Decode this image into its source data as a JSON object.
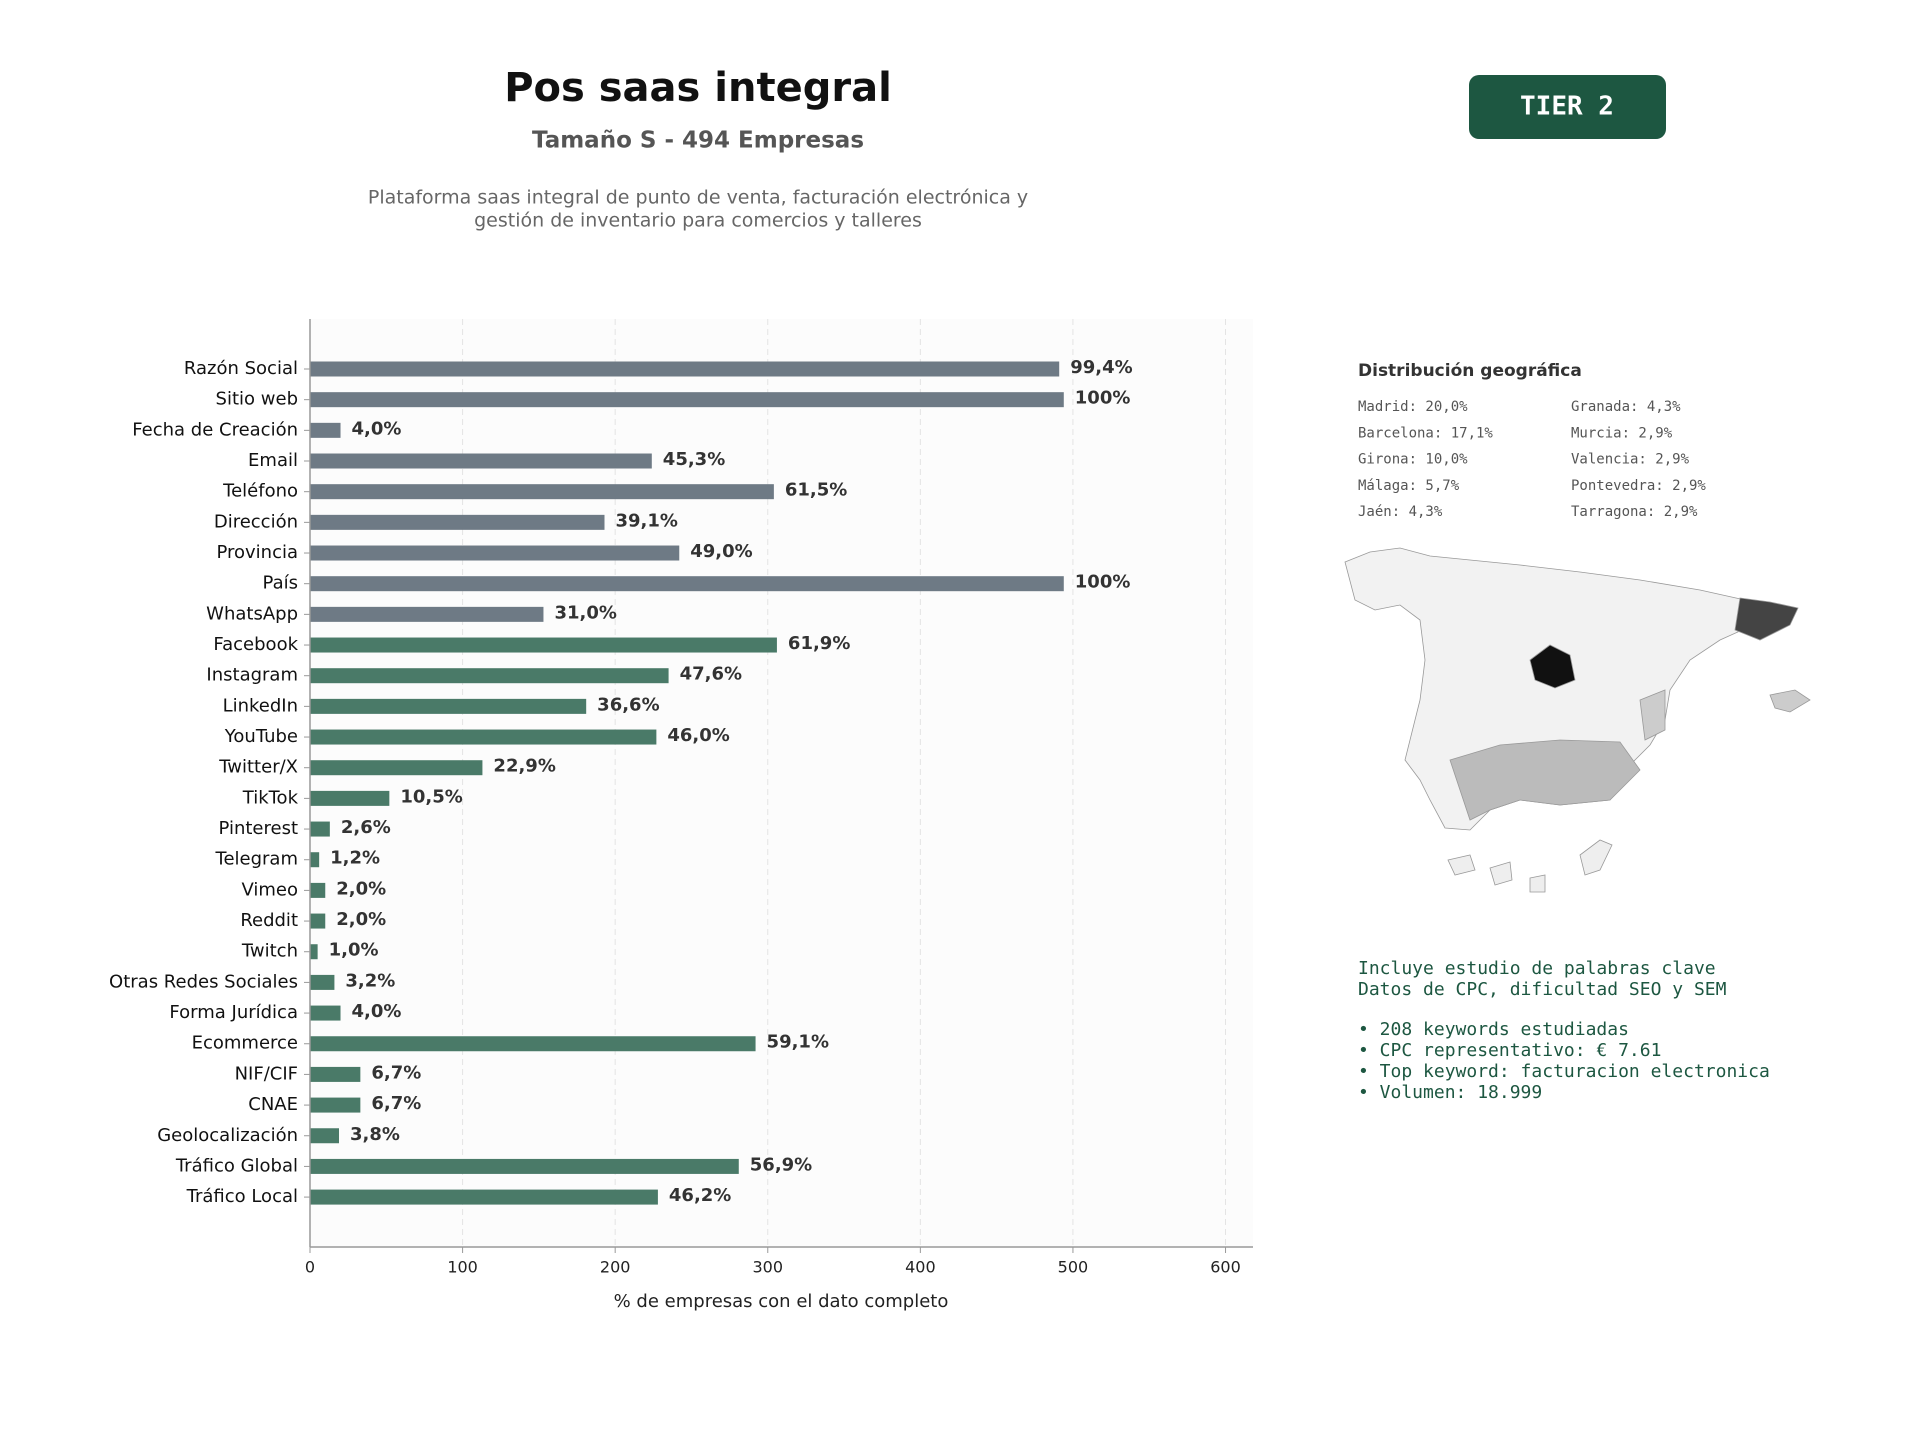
{
  "header": {
    "title": "Pos saas integral",
    "subtitle": "Tamaño S - 494 Empresas",
    "description": [
      "Plataforma saas integral de punto de venta, facturación electrónica y",
      "gestión de inventario para comercios y talleres"
    ],
    "badge": "TIER 2"
  },
  "chart_data": {
    "type": "hbar",
    "xlabel": "% de empresas con el dato completo",
    "categories": [
      "Razón Social",
      "Sitio web",
      "Fecha de Creación",
      "Email",
      "Teléfono",
      "Dirección",
      "Provincia",
      "País",
      "WhatsApp",
      "Facebook",
      "Instagram",
      "LinkedIn",
      "YouTube",
      "Twitter/X",
      "TikTok",
      "Pinterest",
      "Telegram",
      "Vimeo",
      "Reddit",
      "Twitch",
      "Otras Redes Sociales",
      "Forma Jurídica",
      "Ecommerce",
      "NIF/CIF",
      "CNAE",
      "Geolocalización",
      "Tráfico Global",
      "Tráfico Local"
    ],
    "values": [
      491,
      494,
      20,
      224,
      304,
      193,
      242,
      494,
      153,
      306,
      235,
      181,
      227,
      113,
      52,
      13,
      6,
      10,
      10,
      5,
      16,
      20,
      292,
      33,
      33,
      19,
      281,
      228
    ],
    "value_labels": [
      "99,4%",
      "100%",
      "4,0%",
      "45,3%",
      "61,5%",
      "39,1%",
      "49,0%",
      "100%",
      "31,0%",
      "61,9%",
      "47,6%",
      "36,6%",
      "46,0%",
      "22,9%",
      "10,5%",
      "2,6%",
      "1,2%",
      "2,0%",
      "2,0%",
      "1,0%",
      "3,2%",
      "4,0%",
      "59,1%",
      "6,7%",
      "6,7%",
      "3,8%",
      "56,9%",
      "46,2%"
    ],
    "colors": [
      "#6e7a85",
      "#6e7a85",
      "#6e7a85",
      "#6e7a85",
      "#6e7a85",
      "#6e7a85",
      "#6e7a85",
      "#6e7a85",
      "#6e7a85",
      "#4a7a68",
      "#4a7a68",
      "#4a7a68",
      "#4a7a68",
      "#4a7a68",
      "#4a7a68",
      "#4a7a68",
      "#4a7a68",
      "#4a7a68",
      "#4a7a68",
      "#4a7a68",
      "#4a7a68",
      "#4a7a68",
      "#4a7a68",
      "#4a7a68",
      "#4a7a68",
      "#4a7a68",
      "#4a7a68",
      "#4a7a68"
    ],
    "xlim": [
      0,
      618
    ],
    "xticks": [
      0,
      100,
      200,
      300,
      400,
      500,
      600
    ],
    "grid": true
  },
  "geo": {
    "title": "Distribución geográfica",
    "items": [
      "Madrid: 20,0%",
      "Barcelona: 17,1%",
      "Girona: 10,0%",
      "Málaga: 5,7%",
      "Jaén: 4,3%",
      "Granada: 4,3%",
      "Murcia: 2,9%",
      "Valencia: 2,9%",
      "Pontevedra: 2,9%",
      "Tarragona: 2,9%"
    ]
  },
  "keywords": {
    "lines": [
      "Incluye estudio de palabras clave",
      "Datos de CPC, dificultad SEO y SEM"
    ],
    "bullets": [
      "• 208 keywords estudiadas",
      "• CPC representativo: € 7.61",
      "• Top keyword: facturacion electronica",
      "• Volumen: 18.999"
    ]
  }
}
